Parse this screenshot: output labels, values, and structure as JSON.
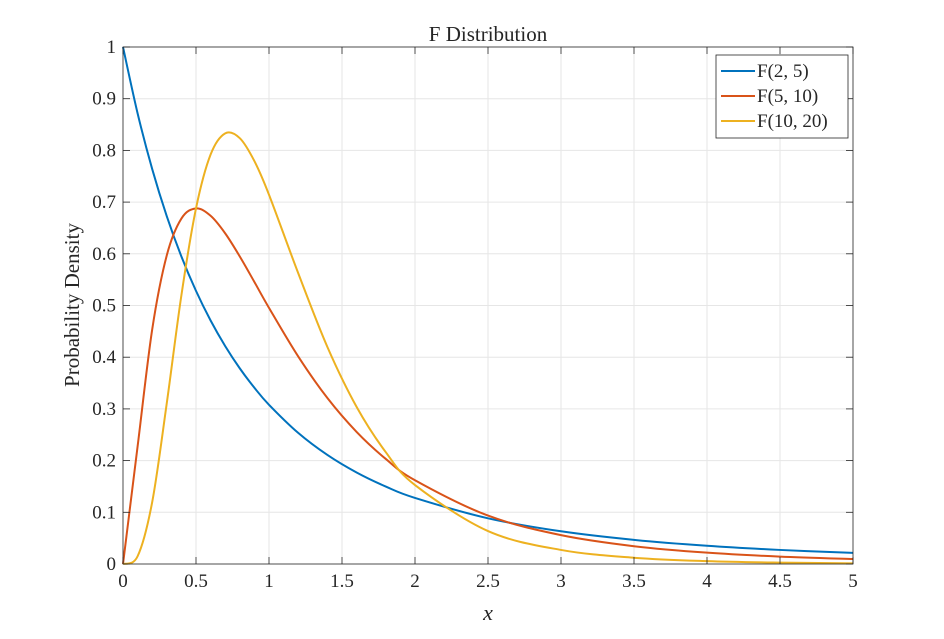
{
  "chart_data": {
    "type": "line",
    "title": "F Distribution",
    "xlabel": "x",
    "ylabel": "Probability Density",
    "xlim": [
      0,
      5
    ],
    "ylim": [
      0,
      1
    ],
    "xticks": [
      "0",
      "0.5",
      "1",
      "1.5",
      "2",
      "2.5",
      "3",
      "3.5",
      "4",
      "4.5",
      "5"
    ],
    "yticks": [
      "0",
      "0.1",
      "0.2",
      "0.3",
      "0.4",
      "0.5",
      "0.6",
      "0.7",
      "0.8",
      "0.9",
      "1"
    ],
    "grid": true,
    "legend_position": "top-right",
    "x": [
      0,
      0.1,
      0.2,
      0.3,
      0.4,
      0.5,
      0.6,
      0.7,
      0.8,
      0.9,
      1.0,
      1.2,
      1.4,
      1.6,
      1.8,
      2.0,
      2.5,
      3.0,
      3.5,
      4.0,
      4.5,
      5.0
    ],
    "series": [
      {
        "name": "F(2, 5)",
        "color": "#0072BD",
        "values": [
          1,
          0.8717,
          0.7639,
          0.6725,
          0.5948,
          0.5283,
          0.471,
          0.4215,
          0.3784,
          0.3409,
          0.308,
          0.2536,
          0.2109,
          0.177,
          0.1498,
          0.1278,
          0.0884,
          0.0633,
          0.0467,
          0.0353,
          0.0272,
          0.0214
        ]
      },
      {
        "name": "F(5, 10)",
        "color": "#D95319",
        "values": [
          0,
          0.2274,
          0.4537,
          0.5972,
          0.6682,
          0.6877,
          0.6735,
          0.6395,
          0.5948,
          0.5455,
          0.4954,
          0.4014,
          0.321,
          0.2555,
          0.2032,
          0.162,
          0.0936,
          0.0558,
          0.0344,
          0.0219,
          0.0143,
          0.0096
        ]
      },
      {
        "name": "F(10, 20)",
        "color": "#EDB120",
        "values": [
          0,
          0.015,
          0.1198,
          0.3114,
          0.5198,
          0.6878,
          0.792,
          0.833,
          0.8236,
          0.7793,
          0.7143,
          0.5626,
          0.4198,
          0.3039,
          0.2163,
          0.1527,
          0.0637,
          0.0272,
          0.0121,
          0.0056,
          0.0027,
          0.0013
        ]
      }
    ]
  }
}
